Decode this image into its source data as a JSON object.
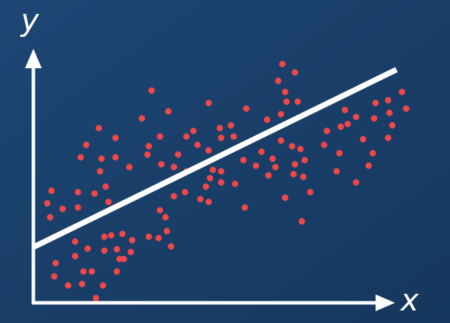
{
  "chart_data": {
    "type": "scatter",
    "x_label": "x",
    "y_label": "y",
    "xlim": [
      0,
      520
    ],
    "ylim": [
      0,
      360
    ],
    "points": {
      "color": "#f04848",
      "x": [
        32,
        30,
        50,
        70,
        90,
        100,
        72,
        84,
        60,
        78,
        102,
        120,
        124,
        140,
        142,
        128,
        112,
        102,
        60,
        120,
        130,
        166,
        180,
        198,
        192,
        182,
        190,
        202,
        218,
        24,
        20,
        26,
        42,
        64,
        64,
        88,
        104,
        108,
        96,
        98,
        68,
        76,
        94,
        118,
        118,
        138,
        156,
        166,
        170,
        194,
        164,
        182,
        184,
        202,
        208,
        220,
        230,
        220,
        236,
        252,
        252,
        268,
        270,
        284,
        288,
        258,
        270,
        254,
        248,
        252,
        240,
        270,
        290,
        302,
        306,
        304,
        320,
        328,
        336,
        338,
        344,
        348,
        356,
        352,
        358,
        376,
        362,
        364,
        380,
        356,
        372,
        384,
        390,
        376,
        388,
        374,
        362,
        386,
        398,
        418,
        422,
        442,
        448,
        440,
        436,
        452,
        464,
        464,
        474,
        482,
        488,
        490,
        492,
        510,
        516,
        510,
        530,
        536,
        512
      ],
      "y": [
        57,
        38,
        25,
        27,
        7,
        25,
        45,
        45,
        67,
        78,
        75,
        77,
        63,
        73,
        90,
        99,
        97,
        95,
        88,
        45,
        63,
        95,
        93,
        81,
        103,
        133,
        123,
        153,
        159,
        123,
        143,
        161,
        135,
        137,
        159,
        157,
        167,
        145,
        189,
        207,
        209,
        227,
        251,
        237,
        209,
        195,
        265,
        225,
        305,
        275,
        213,
        239,
        199,
        195,
        213,
        239,
        247,
        189,
        227,
        287,
        219,
        251,
        237,
        255,
        239,
        191,
        189,
        179,
        167,
        145,
        149,
        173,
        171,
        205,
        279,
        137,
        197,
        217,
        263,
        183,
        207,
        195,
        271,
        319,
        343,
        331,
        303,
        289,
        289,
        233,
        225,
        221,
        205,
        199,
        181,
        185,
        151,
        117,
        159,
        227,
        247,
        253,
        277,
        215,
        189,
        257,
        267,
        173,
        235,
        197,
        215,
        265,
        287,
        291,
        255,
        237,
        303,
        279,
        273
      ]
    },
    "trend_line": {
      "color": "#ffffff",
      "x": [
        0,
        522
      ],
      "y": [
        80,
        335
      ]
    }
  }
}
